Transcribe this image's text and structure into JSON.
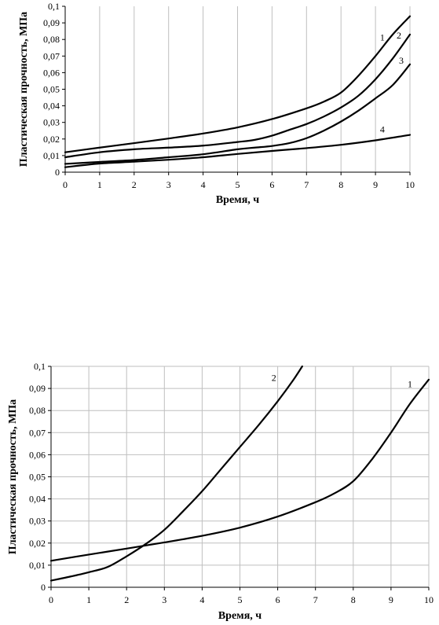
{
  "chart_data": [
    {
      "type": "line",
      "title": "",
      "xlabel": "Время, ч",
      "ylabel": "Пластическая прочность, МПа",
      "xlim": [
        0,
        10
      ],
      "ylim": [
        0,
        0.1
      ],
      "grid": "vertical",
      "x_ticks": [
        0,
        1,
        2,
        3,
        4,
        5,
        6,
        7,
        8,
        9,
        10
      ],
      "x_tick_labels": [
        "0",
        "1",
        "2",
        "3",
        "4",
        "5",
        "6",
        "7",
        "8",
        "9",
        "10"
      ],
      "y_ticks": [
        0,
        0.01,
        0.02,
        0.03,
        0.04,
        0.05,
        0.06,
        0.07,
        0.08,
        0.09,
        0.1
      ],
      "y_tick_labels": [
        "0",
        "0,01",
        "0,02",
        "0,03",
        "0,04",
        "0,05",
        "0,06",
        "0,07",
        "0,08",
        "0,09",
        "0,1"
      ],
      "series": [
        {
          "name": "1",
          "x": [
            0,
            1,
            2,
            3,
            4,
            5,
            6,
            7,
            7.5,
            8,
            8.5,
            9,
            9.5,
            10
          ],
          "y": [
            0.012,
            0.0148,
            0.0175,
            0.0203,
            0.0233,
            0.027,
            0.032,
            0.0385,
            0.0425,
            0.048,
            0.058,
            0.07,
            0.083,
            0.094
          ]
        },
        {
          "name": "2",
          "x": [
            0,
            1,
            2,
            3,
            4,
            5,
            5.5,
            6,
            6.5,
            7,
            7.5,
            8,
            8.5,
            9,
            9.5,
            10
          ],
          "y": [
            0.009,
            0.012,
            0.0138,
            0.0148,
            0.016,
            0.0182,
            0.0195,
            0.022,
            0.0255,
            0.029,
            0.0335,
            0.039,
            0.046,
            0.056,
            0.0685,
            0.083
          ]
        },
        {
          "name": "3",
          "x": [
            0,
            1,
            2,
            3,
            4,
            5,
            5.5,
            6,
            6.5,
            7,
            7.5,
            8,
            8.5,
            9,
            9.5,
            10
          ],
          "y": [
            0.005,
            0.0062,
            0.0073,
            0.009,
            0.0108,
            0.0138,
            0.0148,
            0.0158,
            0.0175,
            0.0205,
            0.025,
            0.0305,
            0.037,
            0.0445,
            0.0525,
            0.065
          ]
        },
        {
          "name": "4",
          "x": [
            0,
            1,
            2,
            3,
            4,
            5,
            6,
            7,
            8,
            9,
            10
          ],
          "y": [
            0.003,
            0.0052,
            0.0063,
            0.0075,
            0.009,
            0.011,
            0.0128,
            0.0145,
            0.0165,
            0.0192,
            0.0225
          ]
        }
      ],
      "series_label_positions": "1 at x≈9.2, 2 at x≈9.6, 3 at x≈9.7, 4 at x≈9.2"
    },
    {
      "type": "line",
      "title": "",
      "xlabel": "Время, ч",
      "ylabel": "Пластическая прочность, МПа",
      "xlim": [
        0,
        10
      ],
      "ylim": [
        0,
        0.1
      ],
      "grid": "both",
      "x_ticks": [
        0,
        1,
        2,
        3,
        4,
        5,
        6,
        7,
        8,
        9,
        10
      ],
      "x_tick_labels": [
        "0",
        "1",
        "2",
        "3",
        "4",
        "5",
        "6",
        "7",
        "8",
        "9",
        "10"
      ],
      "y_ticks": [
        0,
        0.01,
        0.02,
        0.03,
        0.04,
        0.05,
        0.06,
        0.07,
        0.08,
        0.09,
        0.1
      ],
      "y_tick_labels": [
        "0",
        "0,01",
        "0,02",
        "0,03",
        "0,04",
        "0,05",
        "0,06",
        "0,07",
        "0,08",
        "0,09",
        "0,1"
      ],
      "series": [
        {
          "name": "1",
          "x": [
            0,
            1,
            2,
            3,
            4,
            5,
            6,
            7,
            7.5,
            8,
            8.5,
            9,
            9.5,
            10
          ],
          "y": [
            0.012,
            0.0148,
            0.0175,
            0.0203,
            0.0233,
            0.027,
            0.032,
            0.0385,
            0.0425,
            0.048,
            0.058,
            0.07,
            0.083,
            0.094
          ]
        },
        {
          "name": "2",
          "x": [
            0,
            0.5,
            1,
            1.5,
            2,
            2.5,
            3,
            3.5,
            4,
            4.5,
            5,
            5.5,
            6,
            6.4,
            6.65
          ],
          "y": [
            0.003,
            0.0048,
            0.0068,
            0.0092,
            0.014,
            0.0195,
            0.026,
            0.0345,
            0.0435,
            0.0535,
            0.0635,
            0.0735,
            0.0842,
            0.0935,
            0.1
          ]
        }
      ],
      "series_label_positions": "2 near x≈5.9 at top, 1 near x≈9.5"
    }
  ]
}
